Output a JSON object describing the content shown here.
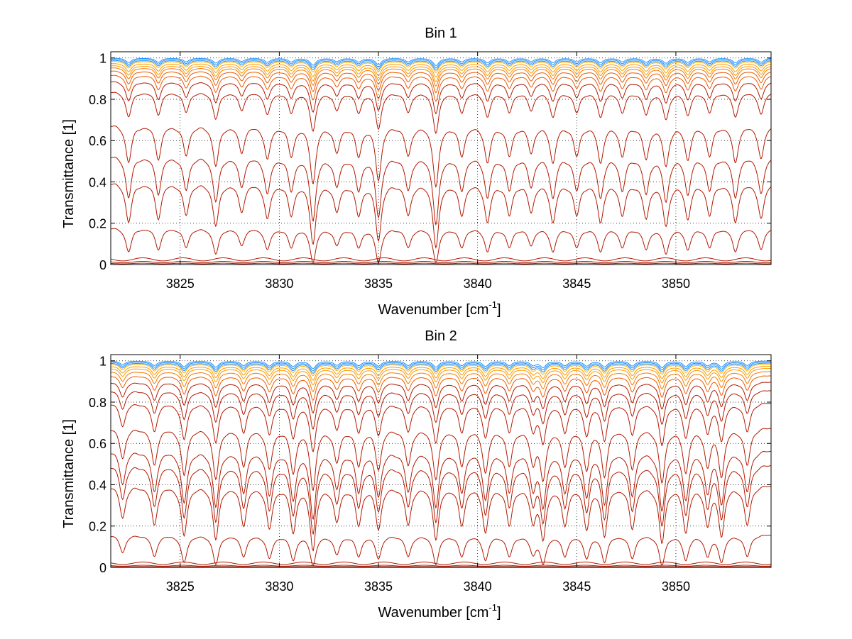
{
  "chart_data": [
    {
      "type": "line",
      "title": "Bin 1",
      "xlabel_main": "Wavenumber [cm",
      "xlabel_sup": "-1",
      "xlabel_end": "]",
      "ylabel": "Transmittance [1]",
      "xlim": [
        3821.5,
        3854.8
      ],
      "ylim": [
        0,
        1.03
      ],
      "xticks": [
        3825,
        3830,
        3835,
        3840,
        3845,
        3850
      ],
      "yticks": [
        0,
        0.2,
        0.4,
        0.6,
        0.8,
        1
      ],
      "xtick_labels": [
        "3825",
        "3830",
        "3835",
        "3840",
        "3845",
        "3850"
      ],
      "ytick_labels": [
        "0",
        "0.2",
        "0.4",
        "0.6",
        "0.8",
        "1"
      ],
      "grid": true,
      "line_colors": [
        "#8b0000",
        "#b30000",
        "#c81a00",
        "#d42a00",
        "#e04000",
        "#ec5a00",
        "#f47a00",
        "#fa9a00",
        "#ffb000",
        "#e8c400",
        "#7fd0a0",
        "#1e90ff"
      ],
      "absorption_lines": [
        {
          "x": 3822.4,
          "depth": 0.55
        },
        {
          "x": 3823.9,
          "depth": 0.5
        },
        {
          "x": 3825.3,
          "depth": 0.45
        },
        {
          "x": 3826.8,
          "depth": 0.6
        },
        {
          "x": 3828.1,
          "depth": 0.4
        },
        {
          "x": 3829.4,
          "depth": 0.5
        },
        {
          "x": 3830.6,
          "depth": 0.45
        },
        {
          "x": 3831.7,
          "depth": 0.85
        },
        {
          "x": 3832.9,
          "depth": 0.4
        },
        {
          "x": 3834.0,
          "depth": 0.45
        },
        {
          "x": 3835.0,
          "depth": 0.8
        },
        {
          "x": 3836.5,
          "depth": 0.45
        },
        {
          "x": 3837.9,
          "depth": 0.9
        },
        {
          "x": 3839.2,
          "depth": 0.45
        },
        {
          "x": 3840.5,
          "depth": 0.55
        },
        {
          "x": 3841.6,
          "depth": 0.45
        },
        {
          "x": 3842.7,
          "depth": 0.4
        },
        {
          "x": 3843.8,
          "depth": 0.55
        },
        {
          "x": 3845.0,
          "depth": 0.45
        },
        {
          "x": 3846.2,
          "depth": 0.55
        },
        {
          "x": 3847.3,
          "depth": 0.45
        },
        {
          "x": 3848.5,
          "depth": 0.5
        },
        {
          "x": 3849.5,
          "depth": 0.6
        },
        {
          "x": 3850.6,
          "depth": 0.5
        },
        {
          "x": 3851.7,
          "depth": 0.45
        },
        {
          "x": 3853.0,
          "depth": 0.55
        },
        {
          "x": 3854.3,
          "depth": 0.5
        }
      ],
      "series_baselines": [
        0.005,
        0.012,
        0.025,
        0.18,
        0.4,
        0.53,
        0.68,
        0.84,
        0.89,
        0.92,
        0.94,
        0.955,
        0.965,
        0.975,
        0.985,
        0.99,
        0.995,
        1.0
      ]
    },
    {
      "type": "line",
      "title": "Bin 2",
      "xlabel_main": "Wavenumber [cm",
      "xlabel_sup": "-1",
      "xlabel_end": "]",
      "ylabel": "Transmittance [1]",
      "xlim": [
        3821.5,
        3854.8
      ],
      "ylim": [
        0,
        1.03
      ],
      "xticks": [
        3825,
        3830,
        3835,
        3840,
        3845,
        3850
      ],
      "yticks": [
        0,
        0.2,
        0.4,
        0.6,
        0.8,
        1
      ],
      "xtick_labels": [
        "3825",
        "3830",
        "3835",
        "3840",
        "3845",
        "3850"
      ],
      "ytick_labels": [
        "0",
        "0.2",
        "0.4",
        "0.6",
        "0.8",
        "1"
      ],
      "grid": true,
      "line_colors": [
        "#8b0000",
        "#b30000",
        "#c81a00",
        "#d42a00",
        "#e04000",
        "#ec5a00",
        "#f47a00",
        "#fa9a00",
        "#ffb000",
        "#e8c400",
        "#7fd0a0",
        "#1e90ff"
      ],
      "absorption_lines": [
        {
          "x": 3822.1,
          "depth": 0.45
        },
        {
          "x": 3823.7,
          "depth": 0.55
        },
        {
          "x": 3825.2,
          "depth": 0.7
        },
        {
          "x": 3826.8,
          "depth": 0.75
        },
        {
          "x": 3828.2,
          "depth": 0.55
        },
        {
          "x": 3829.5,
          "depth": 0.6
        },
        {
          "x": 3830.7,
          "depth": 0.65
        },
        {
          "x": 3831.7,
          "depth": 0.9
        },
        {
          "x": 3832.9,
          "depth": 0.5
        },
        {
          "x": 3834.0,
          "depth": 0.55
        },
        {
          "x": 3835.0,
          "depth": 0.6
        },
        {
          "x": 3836.5,
          "depth": 0.55
        },
        {
          "x": 3837.9,
          "depth": 0.75
        },
        {
          "x": 3839.2,
          "depth": 0.55
        },
        {
          "x": 3840.4,
          "depth": 0.65
        },
        {
          "x": 3841.6,
          "depth": 0.55
        },
        {
          "x": 3842.8,
          "depth": 0.5
        },
        {
          "x": 3843.3,
          "depth": 0.75
        },
        {
          "x": 3844.4,
          "depth": 0.55
        },
        {
          "x": 3845.5,
          "depth": 0.6
        },
        {
          "x": 3846.4,
          "depth": 0.7
        },
        {
          "x": 3847.8,
          "depth": 0.6
        },
        {
          "x": 3849.3,
          "depth": 0.8
        },
        {
          "x": 3850.5,
          "depth": 0.65
        },
        {
          "x": 3851.6,
          "depth": 0.55
        },
        {
          "x": 3852.3,
          "depth": 0.7
        },
        {
          "x": 3853.6,
          "depth": 0.55
        }
      ],
      "series_baselines": [
        0.003,
        0.008,
        0.02,
        0.16,
        0.4,
        0.5,
        0.57,
        0.68,
        0.8,
        0.86,
        0.9,
        0.93,
        0.95,
        0.965,
        0.975,
        0.985,
        0.99,
        0.995,
        1.0
      ]
    }
  ]
}
